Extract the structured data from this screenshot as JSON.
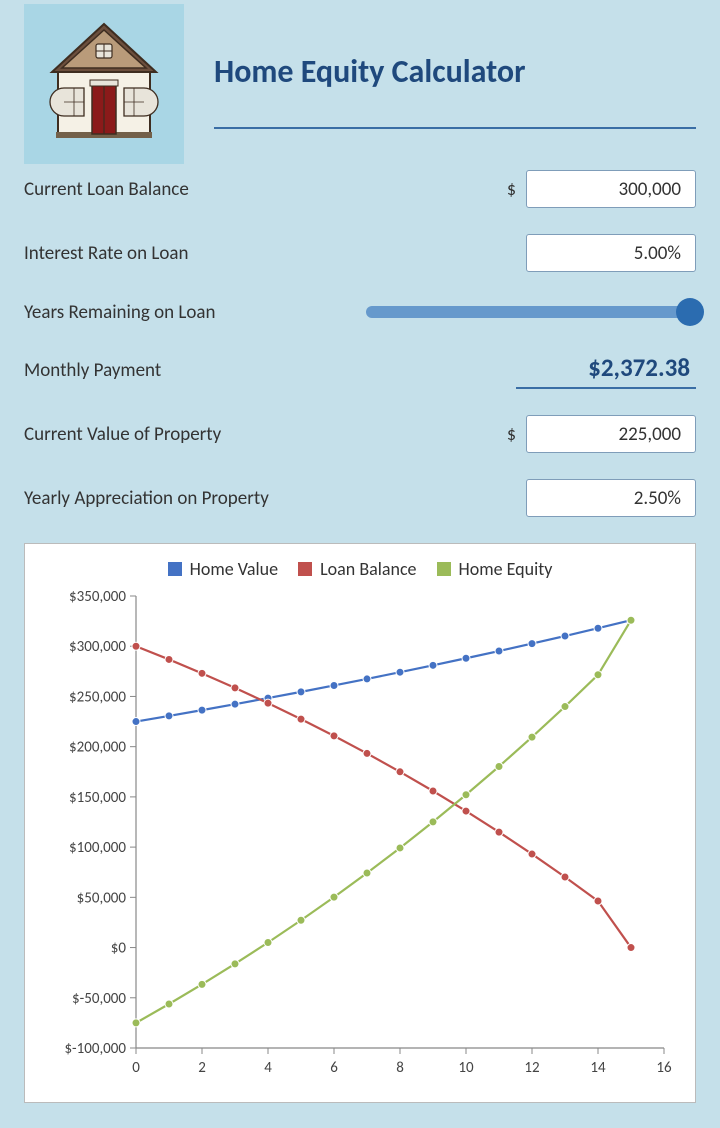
{
  "title": "Home Equity Calculator",
  "fields": {
    "current_loan_balance": {
      "label": "Current Loan Balance",
      "prefix": "$",
      "value": "300,000"
    },
    "interest_rate": {
      "label": "Interest Rate on Loan",
      "value": "5.00%"
    },
    "years_remaining": {
      "label": "Years Remaining on Loan",
      "slider_fraction": 1.0
    },
    "monthly_payment": {
      "label": "Monthly Payment",
      "value": "$2,372.38"
    },
    "current_value": {
      "label": "Current Value of Property",
      "prefix": "$",
      "value": "225,000"
    },
    "yearly_appreciation": {
      "label": "Yearly Appreciation on Property",
      "value": "2.50%"
    }
  },
  "chart": {
    "type": "line",
    "background_color": "#ffffff",
    "grid_color": "#cccccc",
    "axis_color": "#888888",
    "label_fontsize": 15,
    "marker_radius": 4,
    "line_width": 2.2,
    "x": {
      "min": 0,
      "max": 16,
      "tick_step": 2
    },
    "y": {
      "min": -100000,
      "max": 350000,
      "tick_step": 50000,
      "tick_labels": [
        "$-100,000",
        "$-50,000",
        "$0",
        "$50,000",
        "$100,000",
        "$150,000",
        "$200,000",
        "$250,000",
        "$300,000",
        "$350,000"
      ]
    },
    "x_values": [
      0,
      1,
      2,
      3,
      4,
      5,
      6,
      7,
      8,
      9,
      10,
      11,
      12,
      13,
      14,
      15
    ],
    "legend": [
      {
        "label": "Home Value",
        "color": "#4472c4"
      },
      {
        "label": "Loan Balance",
        "color": "#c0504d"
      },
      {
        "label": "Home Equity",
        "color": "#9bbb59"
      }
    ],
    "series": {
      "home_value": {
        "color": "#4472c4",
        "values": [
          225000,
          230625,
          236391,
          242300,
          248358,
          254567,
          260931,
          267454,
          274141,
          280994,
          288019,
          295220,
          302600,
          310165,
          317919,
          325867
        ]
      },
      "loan_balance": {
        "color": "#c0504d",
        "values": [
          300000,
          286832,
          273013,
          258518,
          243322,
          227400,
          210723,
          193262,
          174987,
          155866,
          135866,
          114950,
          93083,
          70224,
          46333,
          0
        ]
      },
      "home_equity": {
        "color": "#9bbb59",
        "values": [
          -75000,
          -56207,
          -36622,
          -16218,
          5036,
          27167,
          50208,
          74192,
          99154,
          125128,
          152153,
          180270,
          209517,
          239941,
          271586,
          325867
        ]
      }
    }
  },
  "colors": {
    "page_bg": "#c5e0ea",
    "tile_bg": "#a9d6e5",
    "title_color": "#1f497d",
    "accent_line": "#3a6ea5",
    "slider_track": "#6699cc",
    "slider_thumb": "#2b6cb0"
  }
}
